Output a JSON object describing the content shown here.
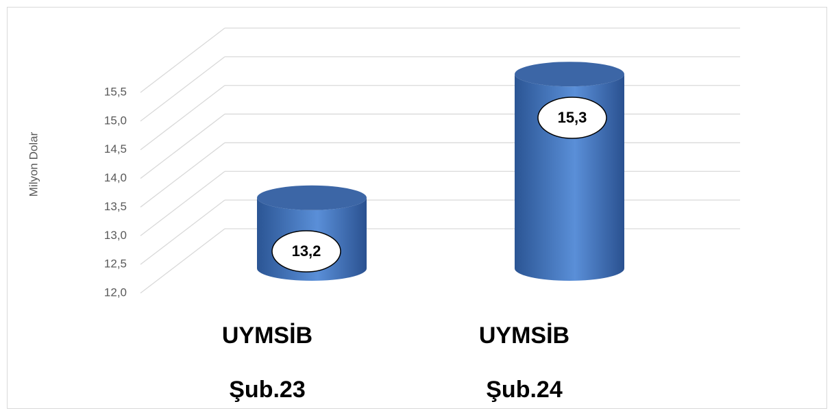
{
  "chart_data": {
    "type": "bar3d",
    "ylabel": "Milyon Dolar",
    "categories": [
      [
        "UYMSİB",
        "Şub.23"
      ],
      [
        "UYMSİB",
        "Şub.24"
      ]
    ],
    "values": [
      13.2,
      15.3
    ],
    "value_labels": [
      "13,2",
      "15,3"
    ],
    "color": "#4a7cc4",
    "ylim": [
      12,
      15.5
    ],
    "yticks": [
      {
        "value": 12,
        "label": "12,0"
      },
      {
        "value": 12.5,
        "label": "12,5"
      },
      {
        "value": 13,
        "label": "13,0"
      },
      {
        "value": 13.5,
        "label": "13,5"
      },
      {
        "value": 14,
        "label": "14,0"
      },
      {
        "value": 14.5,
        "label": "14,5"
      },
      {
        "value": 15,
        "label": "15,0"
      },
      {
        "value": 15.5,
        "label": "15,5"
      }
    ],
    "grid": true
  }
}
